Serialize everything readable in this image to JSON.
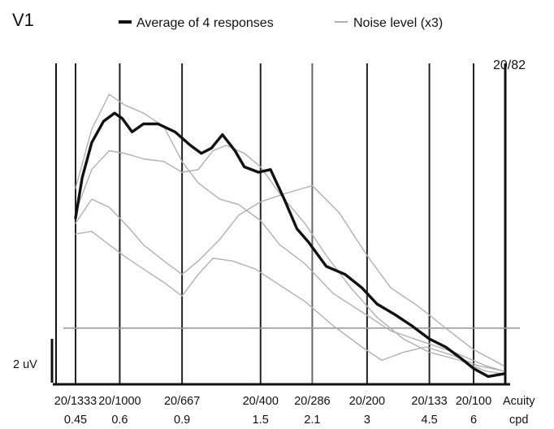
{
  "chart_data": {
    "type": "line",
    "panel_label": "V1",
    "legend": [
      {
        "label": "Average of 4 responses",
        "color": "#111111"
      },
      {
        "label": "Noise level (x3)",
        "color": "#b0b0b0"
      }
    ],
    "legend_position": "top",
    "acuity_estimate": "20/82",
    "scale_bar_label": "2 uV",
    "axis_row_labels": {
      "acuity": "Acuity",
      "cpd": "cpd"
    },
    "x_ticks": [
      {
        "acuity": "20/1333",
        "cpd": "0.45"
      },
      {
        "acuity": "20/1000",
        "cpd": "0.6"
      },
      {
        "acuity": "20/667",
        "cpd": "0.9"
      },
      {
        "acuity": "20/400",
        "cpd": "1.5"
      },
      {
        "acuity": "20/286",
        "cpd": "2.1"
      },
      {
        "acuity": "20/200",
        "cpd": "3"
      },
      {
        "acuity": "20/133",
        "cpd": "4.5"
      },
      {
        "acuity": "20/100",
        "cpd": "6"
      }
    ],
    "x_scale": "log",
    "x_range": [
      0.37,
      7.7
    ],
    "y_range": [
      0,
      13
    ],
    "grid": true,
    "noise_level": 2,
    "series": [
      {
        "name": "Average of 4 responses",
        "color": "#111111",
        "x": [
          0.45,
          0.47,
          0.5,
          0.54,
          0.58,
          0.61,
          0.65,
          0.7,
          0.77,
          0.86,
          0.95,
          1.02,
          1.09,
          1.17,
          1.27,
          1.35,
          1.48,
          1.6,
          1.75,
          1.9,
          2.05,
          2.3,
          2.6,
          2.9,
          3.2,
          3.6,
          4.0,
          4.5,
          5.0,
          5.5,
          6.0,
          6.6,
          7.3
        ],
        "y": [
          6.1,
          7.6,
          8.9,
          9.7,
          10.0,
          9.8,
          9.3,
          9.6,
          9.6,
          9.3,
          8.8,
          8.5,
          8.7,
          9.2,
          8.6,
          8.0,
          7.8,
          7.9,
          6.8,
          5.7,
          5.2,
          4.3,
          4.0,
          3.5,
          2.9,
          2.5,
          2.1,
          1.6,
          1.3,
          0.9,
          0.5,
          0.2,
          0.3
        ]
      },
      {
        "color": "#b0b0b0",
        "x": [
          0.45,
          0.5,
          0.56,
          0.62,
          0.7,
          0.8,
          0.9,
          1.0,
          1.15,
          1.3,
          1.5,
          1.7,
          2.0,
          2.4,
          2.9,
          3.5,
          4.3,
          5.3,
          6.5,
          7.3
        ],
        "y": [
          7.2,
          9.4,
          10.7,
          10.3,
          10.0,
          9.5,
          8.2,
          7.4,
          6.8,
          6.6,
          6.0,
          5.1,
          4.4,
          3.3,
          2.6,
          1.9,
          1.5,
          1.1,
          0.6,
          0.4
        ]
      },
      {
        "color": "#b0b0b0",
        "x": [
          0.45,
          0.5,
          0.56,
          0.62,
          0.7,
          0.8,
          0.9,
          1.0,
          1.1,
          1.2,
          1.35,
          1.5,
          1.7,
          2.0,
          2.3,
          2.7,
          3.2,
          3.8,
          4.5,
          5.5,
          6.5,
          7.3
        ],
        "y": [
          6.3,
          7.9,
          8.6,
          8.5,
          8.3,
          8.2,
          7.8,
          7.9,
          8.6,
          8.8,
          8.5,
          8.0,
          7.0,
          5.9,
          4.7,
          3.5,
          2.4,
          1.6,
          1.1,
          0.8,
          0.4,
          0.3
        ]
      },
      {
        "color": "#b0b0b0",
        "x": [
          0.45,
          0.5,
          0.56,
          0.63,
          0.7,
          0.8,
          0.9,
          1.0,
          1.15,
          1.3,
          1.5,
          1.75,
          2.1,
          2.5,
          3.0,
          3.5,
          4.2,
          5.0,
          6.0,
          7.3
        ],
        "y": [
          5.9,
          6.8,
          6.5,
          5.8,
          5.1,
          4.5,
          4.0,
          4.5,
          5.3,
          6.2,
          6.7,
          7.0,
          7.3,
          6.3,
          4.7,
          3.5,
          2.8,
          2.0,
          1.2,
          0.6
        ]
      },
      {
        "color": "#b0b0b0",
        "x": [
          0.45,
          0.5,
          0.56,
          0.63,
          0.7,
          0.8,
          0.9,
          1.0,
          1.1,
          1.25,
          1.45,
          1.7,
          2.0,
          2.4,
          2.9,
          3.3,
          3.8,
          4.4,
          5.2,
          6.2,
          7.3
        ],
        "y": [
          5.5,
          5.6,
          5.1,
          4.6,
          4.2,
          3.7,
          3.2,
          4.0,
          4.6,
          4.5,
          4.2,
          3.6,
          3.0,
          2.1,
          1.3,
          0.8,
          1.1,
          1.3,
          1.0,
          0.6,
          0.4
        ]
      }
    ]
  }
}
